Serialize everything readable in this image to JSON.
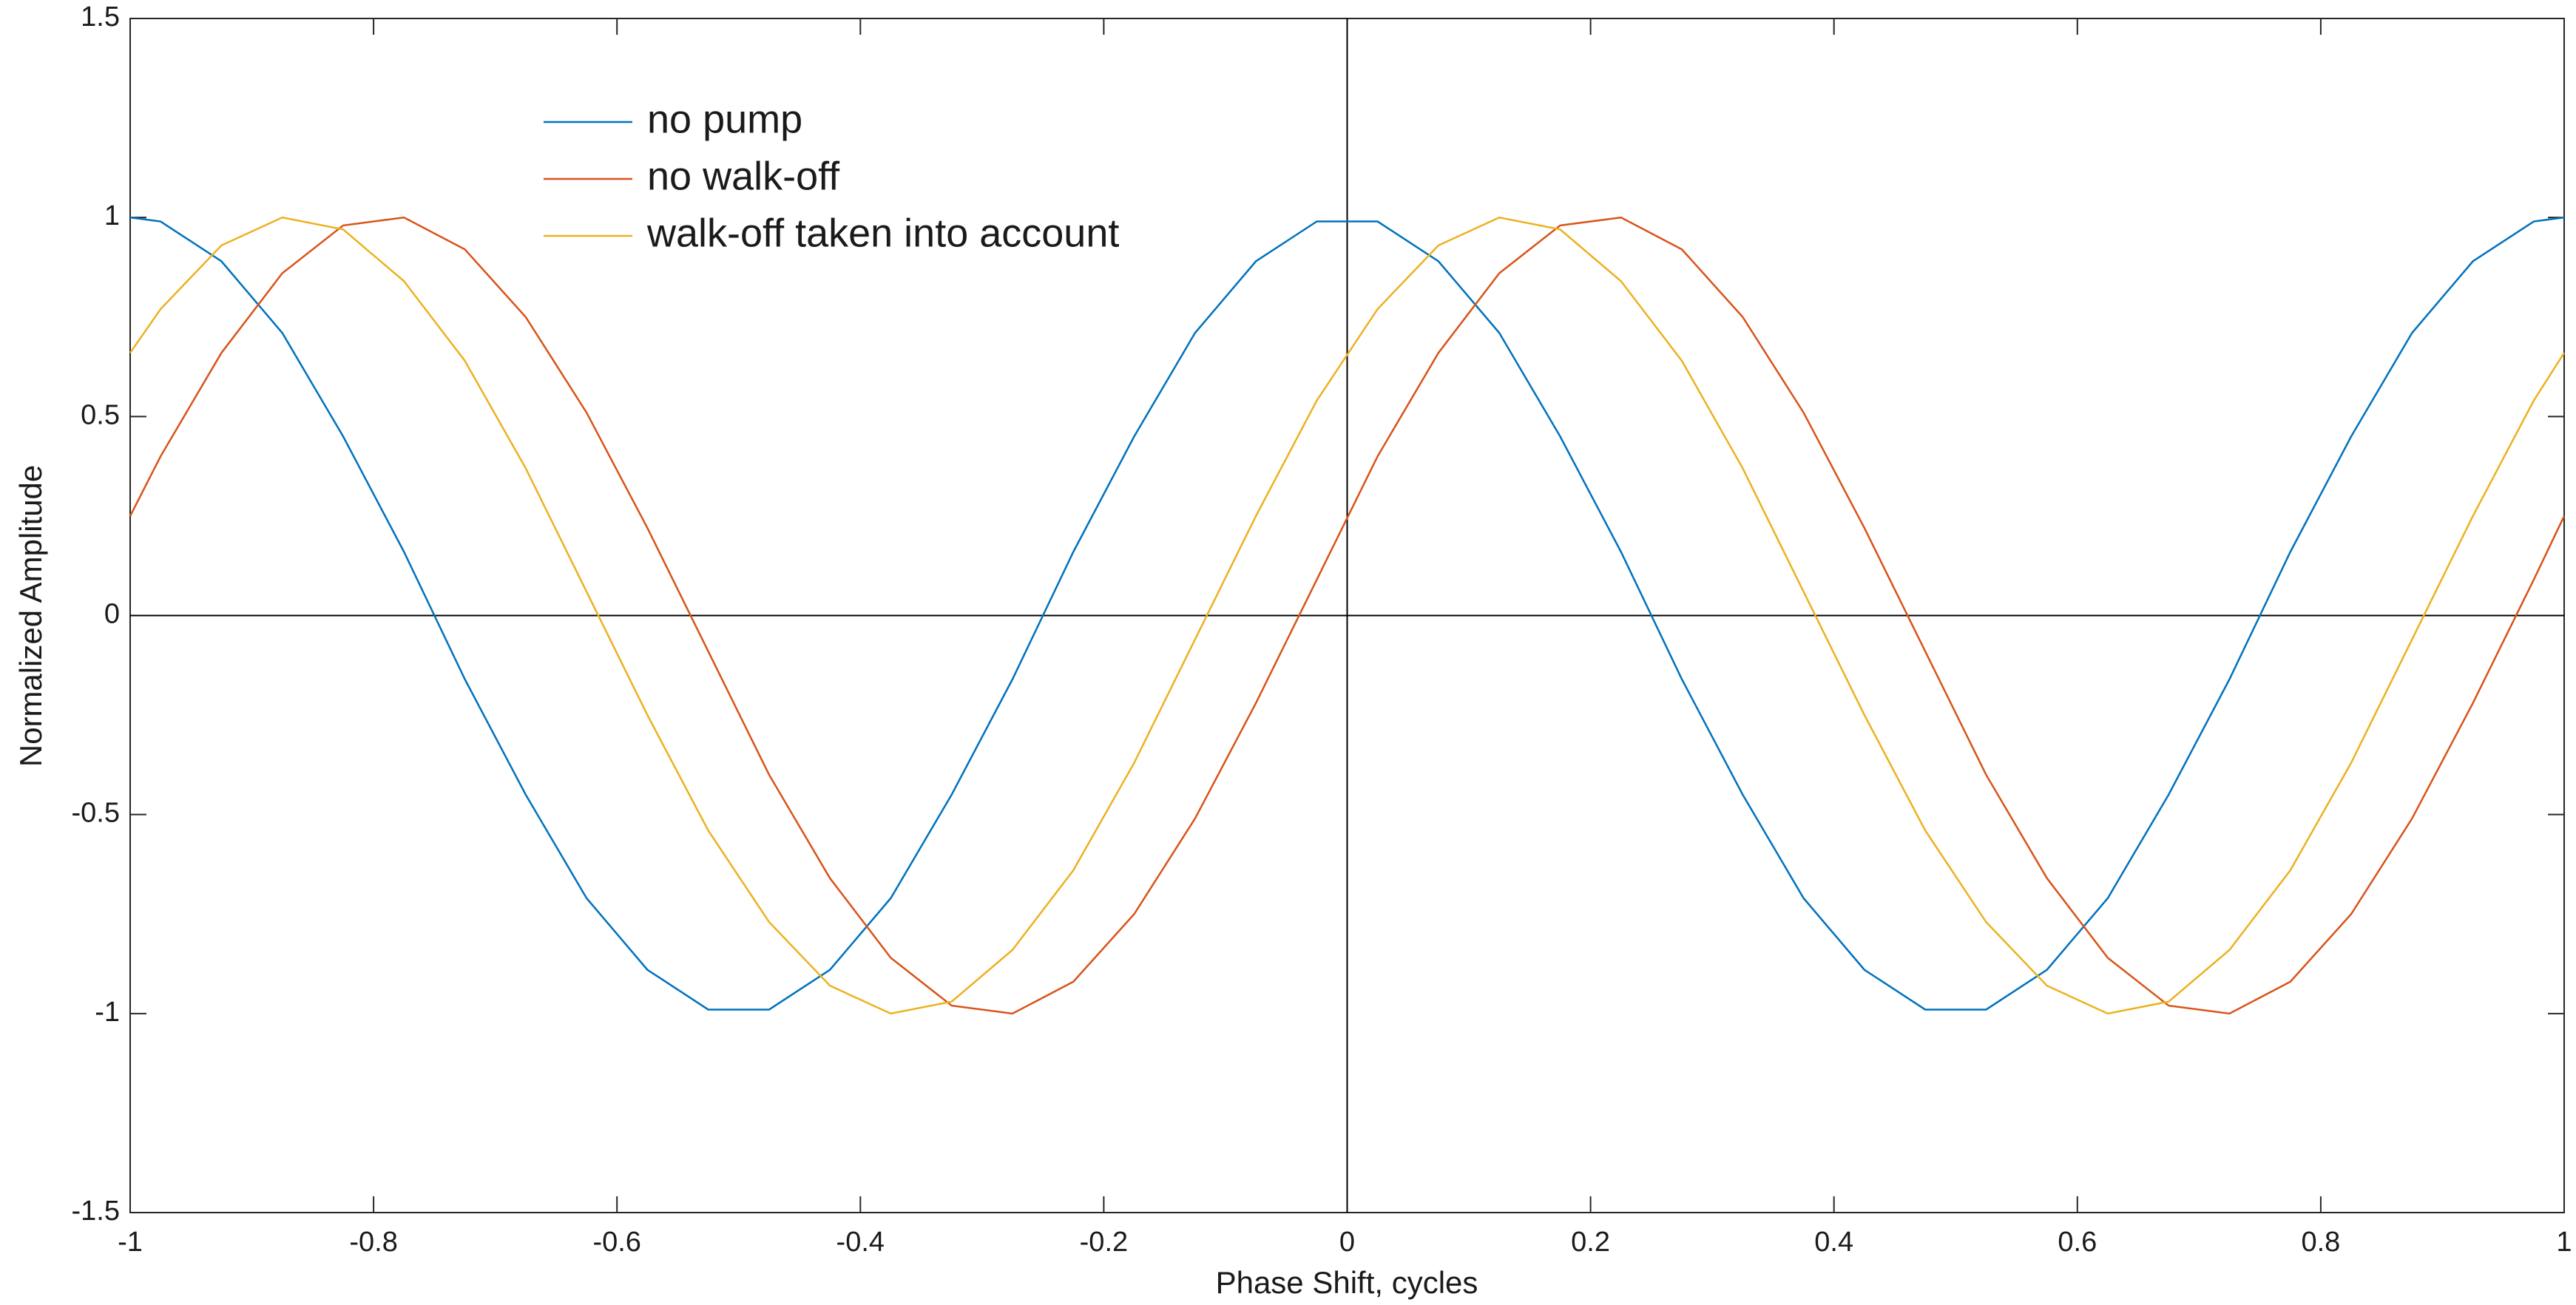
{
  "chart_data": {
    "type": "line",
    "xlabel": "Phase Shift, cycles",
    "ylabel": "Normalized Amplitude",
    "x": [
      -1,
      -0.975,
      -0.925,
      -0.875,
      -0.825,
      -0.775,
      -0.725,
      -0.675,
      -0.625,
      -0.575,
      -0.525,
      -0.475,
      -0.425,
      -0.375,
      -0.325,
      -0.275,
      -0.225,
      -0.175,
      -0.125,
      -0.075,
      -0.025,
      0.025,
      0.075,
      0.125,
      0.175,
      0.225,
      0.275,
      0.325,
      0.375,
      0.425,
      0.475,
      0.525,
      0.575,
      0.625,
      0.675,
      0.725,
      0.775,
      0.825,
      0.875,
      0.925,
      0.975,
      1
    ],
    "series": [
      {
        "name": "no pump",
        "color": "#0072bd",
        "values": [
          1,
          0.99,
          0.89,
          0.71,
          0.45,
          0.16,
          -0.16,
          -0.45,
          -0.71,
          -0.89,
          -0.99,
          -0.99,
          -0.89,
          -0.71,
          -0.45,
          -0.16,
          0.16,
          0.45,
          0.71,
          0.89,
          0.99,
          0.99,
          0.89,
          0.71,
          0.45,
          0.16,
          -0.16,
          -0.45,
          -0.71,
          -0.89,
          -0.99,
          -0.99,
          -0.89,
          -0.71,
          -0.45,
          -0.16,
          0.16,
          0.45,
          0.71,
          0.89,
          0.99,
          1
        ]
      },
      {
        "name": "no walk-off",
        "color": "#d95319",
        "values": [
          0.25,
          0.4,
          0.66,
          0.86,
          0.98,
          1,
          0.92,
          0.75,
          0.51,
          0.22,
          -0.09,
          -0.4,
          -0.66,
          -0.86,
          -0.98,
          -1,
          -0.92,
          -0.75,
          -0.51,
          -0.22,
          0.09,
          0.4,
          0.66,
          0.86,
          0.98,
          1,
          0.92,
          0.75,
          0.51,
          0.22,
          -0.09,
          -0.4,
          -0.66,
          -0.86,
          -0.98,
          -1,
          -0.92,
          -0.75,
          -0.51,
          -0.22,
          0.09,
          0.25
        ]
      },
      {
        "name": "walk-off taken into account",
        "color": "#edb120",
        "values": [
          0.66,
          0.77,
          0.93,
          1,
          0.97,
          0.84,
          0.64,
          0.37,
          0.06,
          -0.25,
          -0.54,
          -0.77,
          -0.93,
          -1,
          -0.97,
          -0.84,
          -0.64,
          -0.37,
          -0.06,
          0.25,
          0.54,
          0.77,
          0.93,
          1,
          0.97,
          0.84,
          0.64,
          0.37,
          0.06,
          -0.25,
          -0.54,
          -0.77,
          -0.93,
          -1,
          -0.97,
          -0.84,
          -0.64,
          -0.37,
          -0.06,
          0.25,
          0.54,
          0.66
        ]
      }
    ],
    "xlim": [
      -1,
      1
    ],
    "xticks": [
      -1,
      -0.8,
      -0.6,
      -0.4,
      -0.2,
      0,
      0.2,
      0.4,
      0.6,
      0.8,
      1
    ],
    "ylim": [
      -1.5,
      1.5
    ],
    "yticks": [
      -1.5,
      -1,
      -0.5,
      0,
      0.5,
      1,
      1.5
    ],
    "zero_lines": true,
    "legend": "upper-left"
  }
}
